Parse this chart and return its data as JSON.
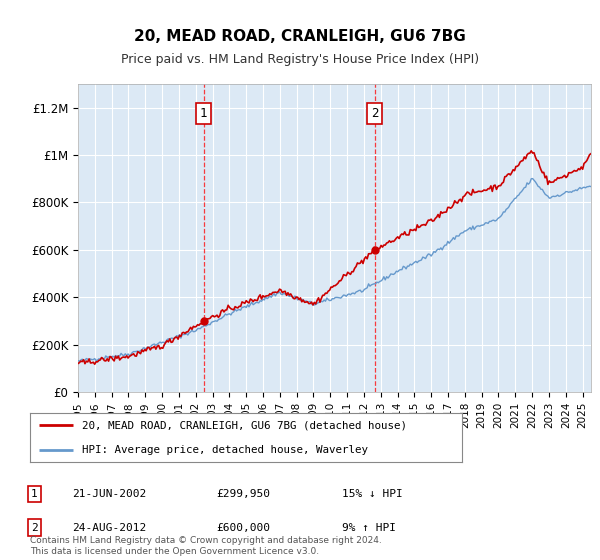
{
  "title": "20, MEAD ROAD, CRANLEIGH, GU6 7BG",
  "subtitle": "Price paid vs. HM Land Registry's House Price Index (HPI)",
  "ylim": [
    0,
    1300000
  ],
  "xlim_start": 1995.0,
  "xlim_end": 2025.5,
  "background_color": "#ffffff",
  "plot_bg_color": "#dce9f5",
  "grid_color": "#ffffff",
  "sale1_year": 2002.47,
  "sale1_price": 299950,
  "sale2_year": 2012.65,
  "sale2_price": 600000,
  "sale1_label": "21-JUN-2002",
  "sale1_amount": "£299,950",
  "sale1_hpi": "15% ↓ HPI",
  "sale2_label": "24-AUG-2012",
  "sale2_amount": "£600,000",
  "sale2_hpi": "9% ↑ HPI",
  "legend_line1": "20, MEAD ROAD, CRANLEIGH, GU6 7BG (detached house)",
  "legend_line2": "HPI: Average price, detached house, Waverley",
  "footer": "Contains HM Land Registry data © Crown copyright and database right 2024.\nThis data is licensed under the Open Government Licence v3.0.",
  "red_color": "#cc0000",
  "blue_color": "#6699cc",
  "ytick_labels": [
    "£0",
    "£200K",
    "£400K",
    "£600K",
    "£800K",
    "£1M",
    "£1.2M"
  ],
  "ytick_values": [
    0,
    200000,
    400000,
    600000,
    800000,
    1000000,
    1200000
  ]
}
